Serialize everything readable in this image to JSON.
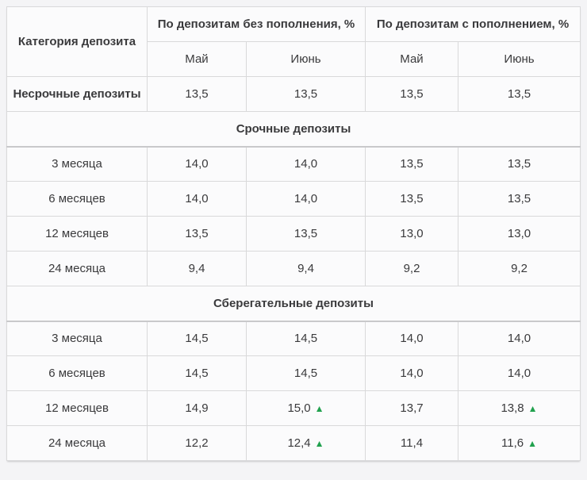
{
  "page": {
    "background_color": "#f4f4f6",
    "cell_background_color": "#fbfbfc",
    "border_color": "#d9d9da",
    "text_color": "#3a3a3c",
    "up_indicator_color": "#21a14e"
  },
  "table": {
    "corner_header": "Категория депозита",
    "groups": [
      {
        "label": "По депозитам без пополнения, %",
        "months": [
          "Май",
          "Июнь"
        ]
      },
      {
        "label": "По депозитам с пополнением, %",
        "months": [
          "Май",
          "Июнь"
        ]
      }
    ],
    "up_symbol": "▲",
    "rows": [
      {
        "type": "data",
        "label": "Несрочные депозиты",
        "label_bold": true,
        "values": [
          {
            "v": "13,5"
          },
          {
            "v": "13,5"
          },
          {
            "v": "13,5"
          },
          {
            "v": "13,5"
          }
        ]
      },
      {
        "type": "section",
        "label": "Срочные депозиты"
      },
      {
        "type": "data",
        "label": "3 месяца",
        "values": [
          {
            "v": "14,0"
          },
          {
            "v": "14,0"
          },
          {
            "v": "13,5"
          },
          {
            "v": "13,5"
          }
        ]
      },
      {
        "type": "data",
        "label": "6 месяцев",
        "values": [
          {
            "v": "14,0"
          },
          {
            "v": "14,0"
          },
          {
            "v": "13,5"
          },
          {
            "v": "13,5"
          }
        ]
      },
      {
        "type": "data",
        "label": "12 месяцев",
        "values": [
          {
            "v": "13,5"
          },
          {
            "v": "13,5"
          },
          {
            "v": "13,0"
          },
          {
            "v": "13,0"
          }
        ]
      },
      {
        "type": "data",
        "label": "24 месяца",
        "values": [
          {
            "v": "9,4"
          },
          {
            "v": "9,4"
          },
          {
            "v": "9,2"
          },
          {
            "v": "9,2"
          }
        ]
      },
      {
        "type": "section",
        "label": "Сберегательные депозиты"
      },
      {
        "type": "data",
        "label": "3 месяца",
        "values": [
          {
            "v": "14,5"
          },
          {
            "v": "14,5"
          },
          {
            "v": "14,0"
          },
          {
            "v": "14,0"
          }
        ]
      },
      {
        "type": "data",
        "label": "6 месяцев",
        "values": [
          {
            "v": "14,5"
          },
          {
            "v": "14,5"
          },
          {
            "v": "14,0"
          },
          {
            "v": "14,0"
          }
        ]
      },
      {
        "type": "data",
        "label": "12 месяцев",
        "values": [
          {
            "v": "14,9"
          },
          {
            "v": "15,0",
            "up": true
          },
          {
            "v": "13,7"
          },
          {
            "v": "13,8",
            "up": true
          }
        ]
      },
      {
        "type": "data",
        "label": "24 месяца",
        "values": [
          {
            "v": "12,2"
          },
          {
            "v": "12,4",
            "up": true
          },
          {
            "v": "11,4"
          },
          {
            "v": "11,6",
            "up": true
          }
        ]
      }
    ]
  },
  "chart_data": {
    "type": "table",
    "title": "",
    "columns": [
      "Категория депозита",
      "По депозитам без пополнения, % — Май",
      "По депозитам без пополнения, % — Июнь",
      "По депозитам с пополнением, % — Май",
      "По депозитам с пополнением, % — Июнь"
    ],
    "sections": [
      {
        "name": null,
        "rows": [
          {
            "category": "Несрочные депозиты",
            "values": [
              13.5,
              13.5,
              13.5,
              13.5
            ],
            "increased": [
              false,
              false,
              false,
              false
            ]
          }
        ]
      },
      {
        "name": "Срочные депозиты",
        "rows": [
          {
            "category": "3 месяца",
            "values": [
              14.0,
              14.0,
              13.5,
              13.5
            ],
            "increased": [
              false,
              false,
              false,
              false
            ]
          },
          {
            "category": "6 месяцев",
            "values": [
              14.0,
              14.0,
              13.5,
              13.5
            ],
            "increased": [
              false,
              false,
              false,
              false
            ]
          },
          {
            "category": "12 месяцев",
            "values": [
              13.5,
              13.5,
              13.0,
              13.0
            ],
            "increased": [
              false,
              false,
              false,
              false
            ]
          },
          {
            "category": "24 месяца",
            "values": [
              9.4,
              9.4,
              9.2,
              9.2
            ],
            "increased": [
              false,
              false,
              false,
              false
            ]
          }
        ]
      },
      {
        "name": "Сберегательные депозиты",
        "rows": [
          {
            "category": "3 месяца",
            "values": [
              14.5,
              14.5,
              14.0,
              14.0
            ],
            "increased": [
              false,
              false,
              false,
              false
            ]
          },
          {
            "category": "6 месяцев",
            "values": [
              14.5,
              14.5,
              14.0,
              14.0
            ],
            "increased": [
              false,
              false,
              false,
              false
            ]
          },
          {
            "category": "12 месяцев",
            "values": [
              14.9,
              15.0,
              13.7,
              13.8
            ],
            "increased": [
              false,
              true,
              false,
              true
            ]
          },
          {
            "category": "24 месяца",
            "values": [
              12.2,
              12.4,
              11.4,
              11.6
            ],
            "increased": [
              false,
              true,
              false,
              true
            ]
          }
        ]
      }
    ]
  }
}
